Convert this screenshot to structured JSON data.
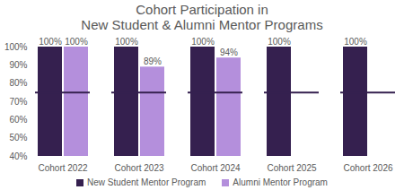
{
  "chart_data": {
    "type": "bar",
    "title": "Cohort Participation in\nNew Student & Alumni Mentor Programs",
    "categories": [
      "Cohort 2022",
      "Cohort 2023",
      "Cohort 2024",
      "Cohort 2025",
      "Cohort 2026"
    ],
    "series": [
      {
        "name": "New Student Mentor Program",
        "color": "#35204f",
        "values": [
          100,
          100,
          100,
          100,
          100
        ],
        "value_labels": [
          "100%",
          "100%",
          "100%",
          "100%",
          "100%"
        ]
      },
      {
        "name": "Alumni Mentor Program",
        "color": "#b48fdc",
        "values": [
          100,
          89,
          94,
          null,
          null
        ],
        "value_labels": [
          "100%",
          "89%",
          "94%",
          null,
          null
        ]
      }
    ],
    "reference_line": 75,
    "ylim": [
      40,
      100
    ],
    "yticks": [
      {
        "value": 40,
        "label": "40%"
      },
      {
        "value": 50,
        "label": "50%"
      },
      {
        "value": 60,
        "label": "60%"
      },
      {
        "value": 70,
        "label": "70%"
      },
      {
        "value": 80,
        "label": "80%"
      },
      {
        "value": 90,
        "label": "90%"
      },
      {
        "value": 100,
        "label": "100%"
      }
    ],
    "grid": false,
    "data_labels": true,
    "legend": "bottom"
  }
}
